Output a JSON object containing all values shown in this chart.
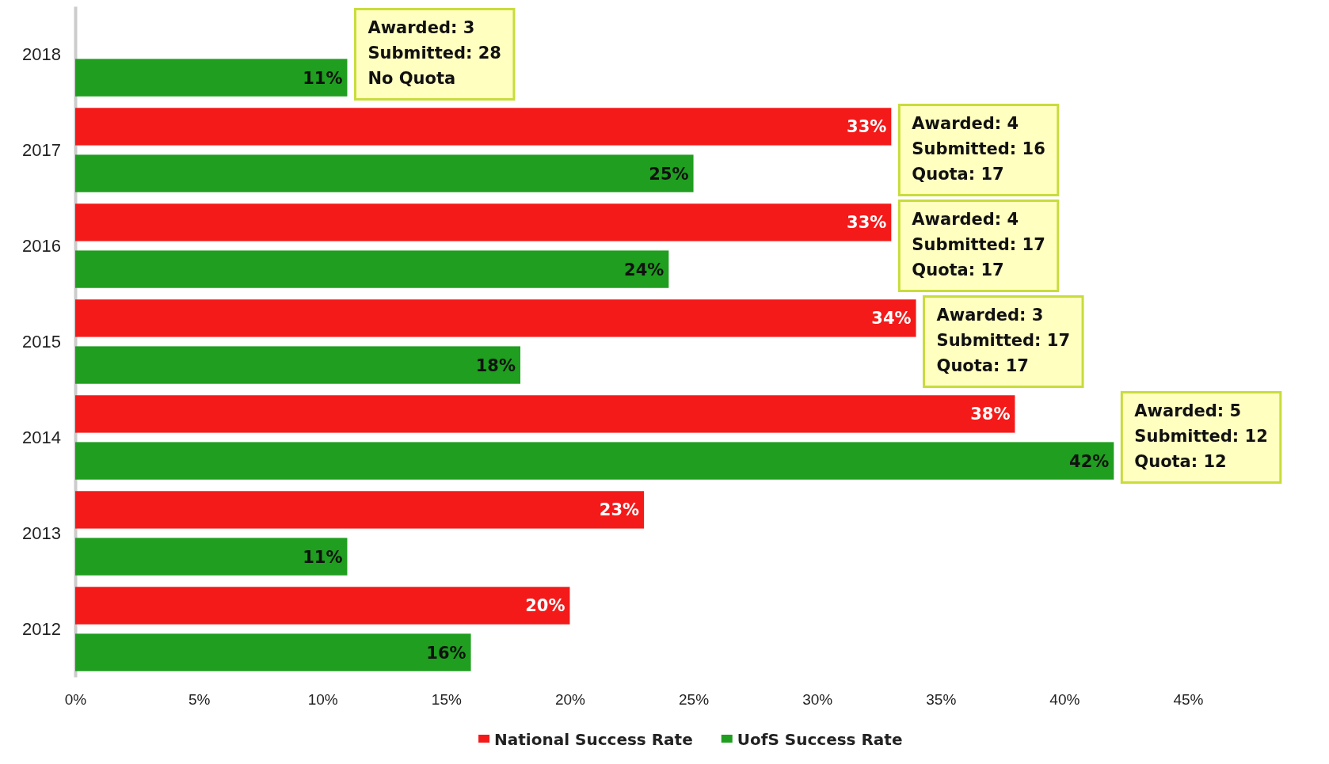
{
  "chart_data": {
    "type": "bar",
    "orientation": "horizontal",
    "categories": [
      "2018",
      "2017",
      "2016",
      "2015",
      "2014",
      "2013",
      "2012"
    ],
    "series": [
      {
        "name": "National Success Rate",
        "color": "#f41a1a",
        "values": [
          null,
          33,
          33,
          34,
          38,
          23,
          20
        ],
        "value_labels": [
          null,
          "33%",
          "33%",
          "34%",
          "38%",
          "23%",
          "20%"
        ]
      },
      {
        "name": "UofS Success Rate",
        "color": "#1f9e1f",
        "values": [
          11,
          25,
          24,
          18,
          42,
          11,
          16
        ],
        "value_labels": [
          "11%",
          "25%",
          "24%",
          "18%",
          "42%",
          "11%",
          "16%"
        ]
      }
    ],
    "xlim": [
      0,
      45
    ],
    "xticks": [
      {
        "value": 0,
        "label": "0%"
      },
      {
        "value": 5,
        "label": "5%"
      },
      {
        "value": 10,
        "label": "10%"
      },
      {
        "value": 15,
        "label": "15%"
      },
      {
        "value": 20,
        "label": "20%"
      },
      {
        "value": 25,
        "label": "25%"
      },
      {
        "value": 30,
        "label": "30%"
      },
      {
        "value": 35,
        "label": "35%"
      },
      {
        "value": 40,
        "label": "40%"
      },
      {
        "value": 45,
        "label": "45%"
      }
    ],
    "annotations": [
      "Awarded: 3\nSubmitted: 28\nNo Quota",
      "Awarded: 4\nSubmitted: 16\nQuota: 17",
      "Awarded: 4\nSubmitted: 17\nQuota: 17",
      "Awarded: 3\nSubmitted: 17\nQuota: 17",
      "Awarded: 5\nSubmitted: 12\nQuota: 12"
    ],
    "grid": false,
    "legend": "bottom"
  }
}
